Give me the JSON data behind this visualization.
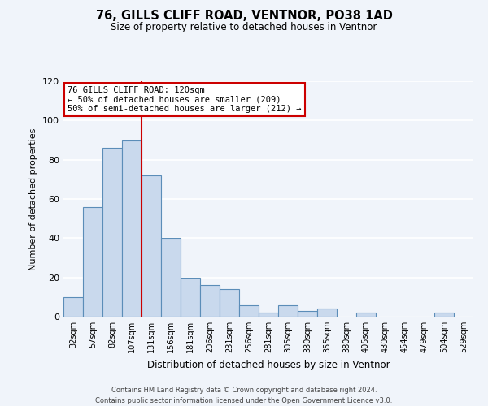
{
  "title": "76, GILLS CLIFF ROAD, VENTNOR, PO38 1AD",
  "subtitle": "Size of property relative to detached houses in Ventnor",
  "xlabel": "Distribution of detached houses by size in Ventnor",
  "ylabel": "Number of detached properties",
  "bar_color": "#c9d9ed",
  "bar_edge_color": "#5b8db8",
  "background_color": "#f0f4fa",
  "grid_color": "#ffffff",
  "bin_labels": [
    "32sqm",
    "57sqm",
    "82sqm",
    "107sqm",
    "131sqm",
    "156sqm",
    "181sqm",
    "206sqm",
    "231sqm",
    "256sqm",
    "281sqm",
    "305sqm",
    "330sqm",
    "355sqm",
    "380sqm",
    "405sqm",
    "430sqm",
    "454sqm",
    "479sqm",
    "504sqm",
    "529sqm"
  ],
  "bar_heights": [
    10,
    56,
    86,
    90,
    72,
    40,
    20,
    16,
    14,
    6,
    2,
    6,
    3,
    4,
    0,
    2,
    0,
    0,
    0,
    2,
    0
  ],
  "property_line_x": 3.5,
  "property_line_label": "76 GILLS CLIFF ROAD: 120sqm",
  "annotation_line1": "← 50% of detached houses are smaller (209)",
  "annotation_line2": "50% of semi-detached houses are larger (212) →",
  "annotation_box_color": "#ffffff",
  "annotation_box_edge_color": "#cc0000",
  "red_line_color": "#cc0000",
  "ylim": [
    0,
    120
  ],
  "yticks": [
    0,
    20,
    40,
    60,
    80,
    100,
    120
  ],
  "footer_line1": "Contains HM Land Registry data © Crown copyright and database right 2024.",
  "footer_line2": "Contains public sector information licensed under the Open Government Licence v3.0."
}
